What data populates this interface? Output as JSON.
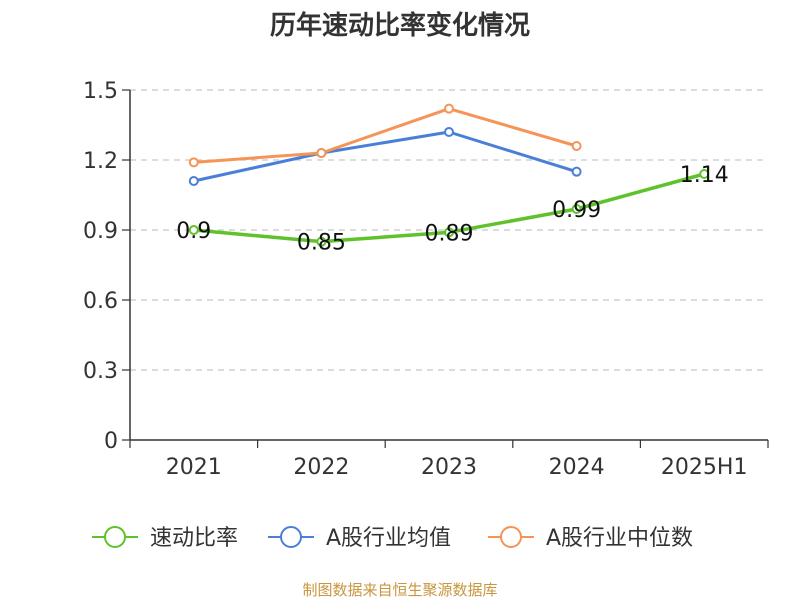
{
  "chart_data": {
    "type": "line",
    "title": "历年速动比率变化情况",
    "categories": [
      "2021",
      "2022",
      "2023",
      "2024",
      "2025H1"
    ],
    "ylim": [
      0,
      1.5
    ],
    "yticks": [
      "0",
      "0.3",
      "0.6",
      "0.9",
      "1.2",
      "1.5"
    ],
    "grid": true,
    "legend_position": "bottom",
    "series": [
      {
        "name": "速动比率",
        "color": "#5fc22b",
        "values": [
          0.9,
          0.85,
          0.89,
          0.99,
          1.14
        ],
        "labels": [
          "0.9",
          "0.85",
          "0.89",
          "0.99",
          "1.14"
        ]
      },
      {
        "name": "A股行业均值",
        "color": "#4a7fd8",
        "values": [
          1.11,
          1.23,
          1.32,
          1.15,
          null
        ]
      },
      {
        "name": "A股行业中位数",
        "color": "#f59456",
        "values": [
          1.19,
          1.23,
          1.42,
          1.26,
          null
        ]
      }
    ]
  },
  "footer": {
    "source": "制图数据来自恒生聚源数据库"
  }
}
